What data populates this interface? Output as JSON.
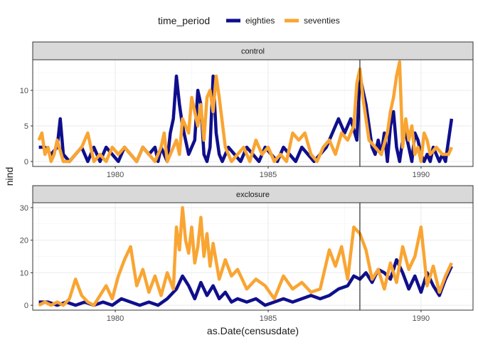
{
  "chart_data": {
    "type": "line",
    "xlabel": "as.Date(censusdate)",
    "ylabel": "nind",
    "legend": {
      "title": "time_period",
      "position": "top",
      "entries": [
        {
          "name": "eighties",
          "color": "#0f0f8c"
        },
        {
          "name": "seventies",
          "color": "#f9a533"
        }
      ]
    },
    "x_ticks": [
      1980,
      1985,
      1990
    ],
    "xlim": [
      1977.3,
      1991.7
    ],
    "vline_x": 1988.0,
    "grid": true,
    "panels": [
      {
        "strip": "control",
        "ylim": [
          -0.7,
          14.3
        ],
        "y_ticks": [
          0,
          5,
          10
        ],
        "series": [
          {
            "name": "eighties",
            "color": "#0f0f8c",
            "x": [
              1977.5,
              1977.7,
              1977.9,
              1978.1,
              1978.2,
              1978.3,
              1978.5,
              1978.7,
              1978.9,
              1979.1,
              1979.3,
              1979.5,
              1979.7,
              1979.9,
              1980.1,
              1980.3,
              1980.5,
              1980.7,
              1980.9,
              1981.1,
              1981.3,
              1981.4,
              1981.5,
              1981.7,
              1981.8,
              1981.9,
              1982.0,
              1982.1,
              1982.2,
              1982.3,
              1982.4,
              1982.6,
              1982.7,
              1982.8,
              1982.9,
              1983.0,
              1983.1,
              1983.2,
              1983.3,
              1983.4,
              1983.5,
              1983.7,
              1983.9,
              1984.1,
              1984.3,
              1984.5,
              1984.7,
              1984.9,
              1985.1,
              1985.3,
              1985.5,
              1985.7,
              1985.9,
              1986.1,
              1986.3,
              1986.5,
              1986.7,
              1986.9,
              1987.1,
              1987.3,
              1987.5,
              1987.7,
              1987.9,
              1988.0,
              1988.1,
              1988.2,
              1988.3,
              1988.4,
              1988.5,
              1988.6,
              1988.7,
              1988.8,
              1988.9,
              1989.0,
              1989.1,
              1989.2,
              1989.3,
              1989.4,
              1989.5,
              1989.6,
              1989.7,
              1989.8,
              1989.9,
              1990.0,
              1990.1,
              1990.2,
              1990.3,
              1990.4,
              1990.5,
              1990.6,
              1990.7,
              1990.8,
              1990.9,
              1991.0
            ],
            "values": [
              2,
              2,
              1,
              2,
              6,
              1,
              0,
              1,
              2,
              0,
              2,
              0,
              2,
              1,
              0,
              2,
              1,
              0,
              2,
              1,
              2,
              0,
              2,
              0,
              4,
              6,
              12,
              8,
              5,
              3,
              1,
              3,
              10,
              8,
              1,
              0,
              2,
              12,
              4,
              1,
              0,
              2,
              1,
              0,
              2,
              1,
              0,
              2,
              1,
              0,
              2,
              1,
              0,
              2,
              1,
              0,
              1,
              2,
              4,
              6,
              4,
              6,
              3,
              12,
              10,
              8,
              5,
              2,
              1,
              3,
              1,
              4,
              0,
              5,
              7,
              2,
              0,
              3,
              4,
              2,
              0,
              4,
              3,
              1,
              0,
              1,
              0,
              2,
              1,
              0,
              1,
              0,
              3,
              6
            ]
          },
          {
            "name": "seventies",
            "color": "#f9a533",
            "x": [
              1977.5,
              1977.6,
              1977.7,
              1977.8,
              1977.9,
              1978.0,
              1978.1,
              1978.3,
              1978.5,
              1978.7,
              1978.9,
              1979.1,
              1979.3,
              1979.5,
              1979.7,
              1979.9,
              1980.1,
              1980.3,
              1980.5,
              1980.7,
              1980.9,
              1981.1,
              1981.3,
              1981.5,
              1981.6,
              1981.7,
              1981.9,
              1982.0,
              1982.1,
              1982.2,
              1982.4,
              1982.5,
              1982.6,
              1982.7,
              1982.8,
              1982.9,
              1983.0,
              1983.1,
              1983.2,
              1983.3,
              1983.4,
              1983.6,
              1983.8,
              1984.0,
              1984.2,
              1984.4,
              1984.6,
              1984.8,
              1985.0,
              1985.2,
              1985.4,
              1985.6,
              1985.8,
              1986.0,
              1986.2,
              1986.4,
              1986.6,
              1986.8,
              1987.0,
              1987.2,
              1987.4,
              1987.6,
              1987.8,
              1987.9,
              1988.0,
              1988.1,
              1988.3,
              1988.5,
              1988.7,
              1988.9,
              1989.0,
              1989.1,
              1989.2,
              1989.3,
              1989.4,
              1989.5,
              1989.6,
              1989.7,
              1989.8,
              1989.9,
              1990.0,
              1990.1,
              1990.2,
              1990.3,
              1990.5,
              1990.7,
              1990.9,
              1991.0
            ],
            "values": [
              3,
              4,
              1,
              2,
              0,
              1,
              3,
              0,
              0,
              1,
              2,
              4,
              0,
              1,
              0,
              2,
              1,
              2,
              1,
              0,
              2,
              1,
              0,
              2,
              4,
              0,
              2,
              3,
              1,
              6,
              4,
              9,
              7,
              5,
              8,
              3,
              9,
              10,
              7,
              12,
              9,
              2,
              0,
              1,
              2,
              0,
              3,
              1,
              2,
              0,
              1,
              0,
              4,
              3,
              4,
              1,
              0,
              2,
              3,
              1,
              4,
              3,
              5,
              11,
              13,
              9,
              3,
              2,
              1,
              4,
              7,
              9,
              12,
              14,
              2,
              6,
              3,
              5,
              1,
              2,
              0,
              4,
              3,
              1,
              2,
              1,
              1,
              2
            ]
          }
        ]
      },
      {
        "strip": "exclosure",
        "ylim": [
          -1.5,
          31.5
        ],
        "y_ticks": [
          0,
          10,
          20,
          30
        ],
        "series": [
          {
            "name": "eighties",
            "color": "#0f0f8c",
            "x": [
              1977.5,
              1977.8,
              1978.1,
              1978.4,
              1978.7,
              1979.0,
              1979.3,
              1979.6,
              1979.9,
              1980.2,
              1980.5,
              1980.8,
              1981.1,
              1981.4,
              1981.7,
              1982.0,
              1982.2,
              1982.4,
              1982.6,
              1982.8,
              1983.0,
              1983.2,
              1983.4,
              1983.6,
              1983.8,
              1984.0,
              1984.3,
              1984.6,
              1984.9,
              1985.2,
              1985.5,
              1985.8,
              1986.1,
              1986.4,
              1986.7,
              1987.0,
              1987.3,
              1987.6,
              1987.8,
              1988.0,
              1988.2,
              1988.4,
              1988.6,
              1988.8,
              1989.0,
              1989.2,
              1989.4,
              1989.6,
              1989.8,
              1990.0,
              1990.2,
              1990.4,
              1990.6,
              1990.8,
              1991.0
            ],
            "values": [
              1,
              1,
              0,
              1,
              0,
              1,
              0,
              1,
              0,
              2,
              1,
              0,
              1,
              0,
              2,
              5,
              9,
              6,
              2,
              7,
              3,
              6,
              2,
              4,
              1,
              2,
              1,
              2,
              0,
              1,
              2,
              1,
              2,
              3,
              2,
              3,
              5,
              6,
              9,
              8,
              10,
              7,
              11,
              10,
              8,
              14,
              10,
              5,
              9,
              4,
              10,
              6,
              3,
              8,
              12
            ]
          },
          {
            "name": "seventies",
            "color": "#f9a533",
            "x": [
              1977.5,
              1977.7,
              1977.9,
              1978.1,
              1978.3,
              1978.5,
              1978.7,
              1978.9,
              1979.1,
              1979.3,
              1979.5,
              1979.7,
              1979.9,
              1980.1,
              1980.3,
              1980.5,
              1980.7,
              1980.9,
              1981.1,
              1981.3,
              1981.5,
              1981.7,
              1981.9,
              1982.0,
              1982.1,
              1982.2,
              1982.3,
              1982.4,
              1982.5,
              1982.6,
              1982.7,
              1982.8,
              1982.9,
              1983.0,
              1983.1,
              1983.2,
              1983.4,
              1983.6,
              1983.8,
              1984.0,
              1984.3,
              1984.6,
              1984.9,
              1985.2,
              1985.5,
              1985.8,
              1986.1,
              1986.4,
              1986.7,
              1987.0,
              1987.2,
              1987.4,
              1987.6,
              1987.8,
              1988.0,
              1988.2,
              1988.4,
              1988.6,
              1988.8,
              1989.0,
              1989.2,
              1989.4,
              1989.6,
              1989.8,
              1990.0,
              1990.2,
              1990.4,
              1990.6,
              1990.8,
              1991.0
            ],
            "values": [
              0,
              1,
              0,
              1,
              0,
              2,
              8,
              3,
              1,
              0,
              3,
              6,
              2,
              9,
              14,
              18,
              6,
              11,
              4,
              9,
              3,
              10,
              5,
              24,
              17,
              30,
              20,
              16,
              24,
              13,
              18,
              27,
              15,
              22,
              12,
              19,
              8,
              14,
              9,
              11,
              5,
              8,
              6,
              2,
              9,
              5,
              7,
              4,
              5,
              17,
              12,
              18,
              8,
              24,
              22,
              17,
              8,
              11,
              5,
              13,
              7,
              18,
              11,
              15,
              24,
              6,
              12,
              4,
              9,
              13
            ]
          }
        ]
      }
    ]
  }
}
